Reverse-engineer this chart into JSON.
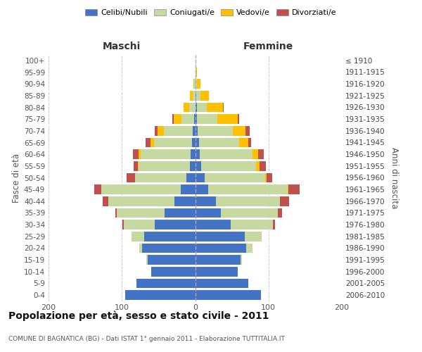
{
  "age_groups": [
    "0-4",
    "5-9",
    "10-14",
    "15-19",
    "20-24",
    "25-29",
    "30-34",
    "35-39",
    "40-44",
    "45-49",
    "50-54",
    "55-59",
    "60-64",
    "65-69",
    "70-74",
    "75-79",
    "80-84",
    "85-89",
    "90-94",
    "95-99",
    "100+"
  ],
  "birth_years": [
    "2006-2010",
    "2001-2005",
    "1996-2000",
    "1991-1995",
    "1986-1990",
    "1981-1985",
    "1976-1980",
    "1971-1975",
    "1966-1970",
    "1961-1965",
    "1956-1960",
    "1951-1955",
    "1946-1950",
    "1941-1945",
    "1936-1940",
    "1931-1935",
    "1926-1930",
    "1921-1925",
    "1916-1920",
    "1911-1915",
    "≤ 1910"
  ],
  "male_celibi": [
    95,
    80,
    60,
    65,
    72,
    70,
    55,
    42,
    28,
    20,
    12,
    7,
    6,
    4,
    3,
    1,
    0,
    0,
    0,
    0,
    0
  ],
  "male_coniugati": [
    0,
    0,
    0,
    2,
    4,
    17,
    42,
    65,
    90,
    108,
    70,
    70,
    68,
    52,
    40,
    18,
    8,
    3,
    1,
    0,
    0
  ],
  "male_vedovi": [
    0,
    0,
    0,
    0,
    0,
    0,
    0,
    0,
    0,
    0,
    0,
    1,
    3,
    5,
    8,
    10,
    8,
    4,
    1,
    0,
    0
  ],
  "male_divorziati": [
    0,
    0,
    0,
    0,
    0,
    0,
    2,
    2,
    8,
    10,
    12,
    6,
    8,
    7,
    4,
    2,
    0,
    0,
    0,
    0,
    0
  ],
  "female_nubili": [
    90,
    72,
    58,
    62,
    70,
    68,
    48,
    35,
    28,
    18,
    13,
    8,
    6,
    5,
    3,
    2,
    2,
    1,
    0,
    0,
    0
  ],
  "female_coniugate": [
    0,
    0,
    0,
    2,
    8,
    23,
    58,
    78,
    88,
    108,
    82,
    75,
    72,
    55,
    48,
    28,
    14,
    6,
    2,
    0,
    0
  ],
  "female_vedove": [
    0,
    0,
    0,
    0,
    0,
    0,
    0,
    0,
    0,
    1,
    2,
    5,
    8,
    12,
    18,
    28,
    22,
    12,
    5,
    2,
    0
  ],
  "female_divorziate": [
    0,
    0,
    0,
    0,
    0,
    0,
    3,
    5,
    12,
    15,
    8,
    8,
    8,
    4,
    5,
    2,
    1,
    0,
    0,
    0,
    0
  ],
  "color_celibi": "#4472c4",
  "color_coniugati": "#c5d9a0",
  "color_vedovi": "#ffc000",
  "color_divorziati": "#c0504d",
  "xlim": 200,
  "title": "Popolazione per età, sesso e stato civile - 2011",
  "subtitle": "COMUNE DI BAGNATICA (BG) - Dati ISTAT 1° gennaio 2011 - Elaborazione TUTTITALIA.IT",
  "legend_labels": [
    "Celibi/Nubili",
    "Coniugati/e",
    "Vedovi/e",
    "Divorziati/e"
  ],
  "label_maschi": "Maschi",
  "label_femmine": "Femmine",
  "ylabel_left": "Fasce di età",
  "ylabel_right": "Anni di nascita",
  "bg_color": "#ffffff",
  "grid_color": "#cccccc",
  "bar_height": 0.82
}
